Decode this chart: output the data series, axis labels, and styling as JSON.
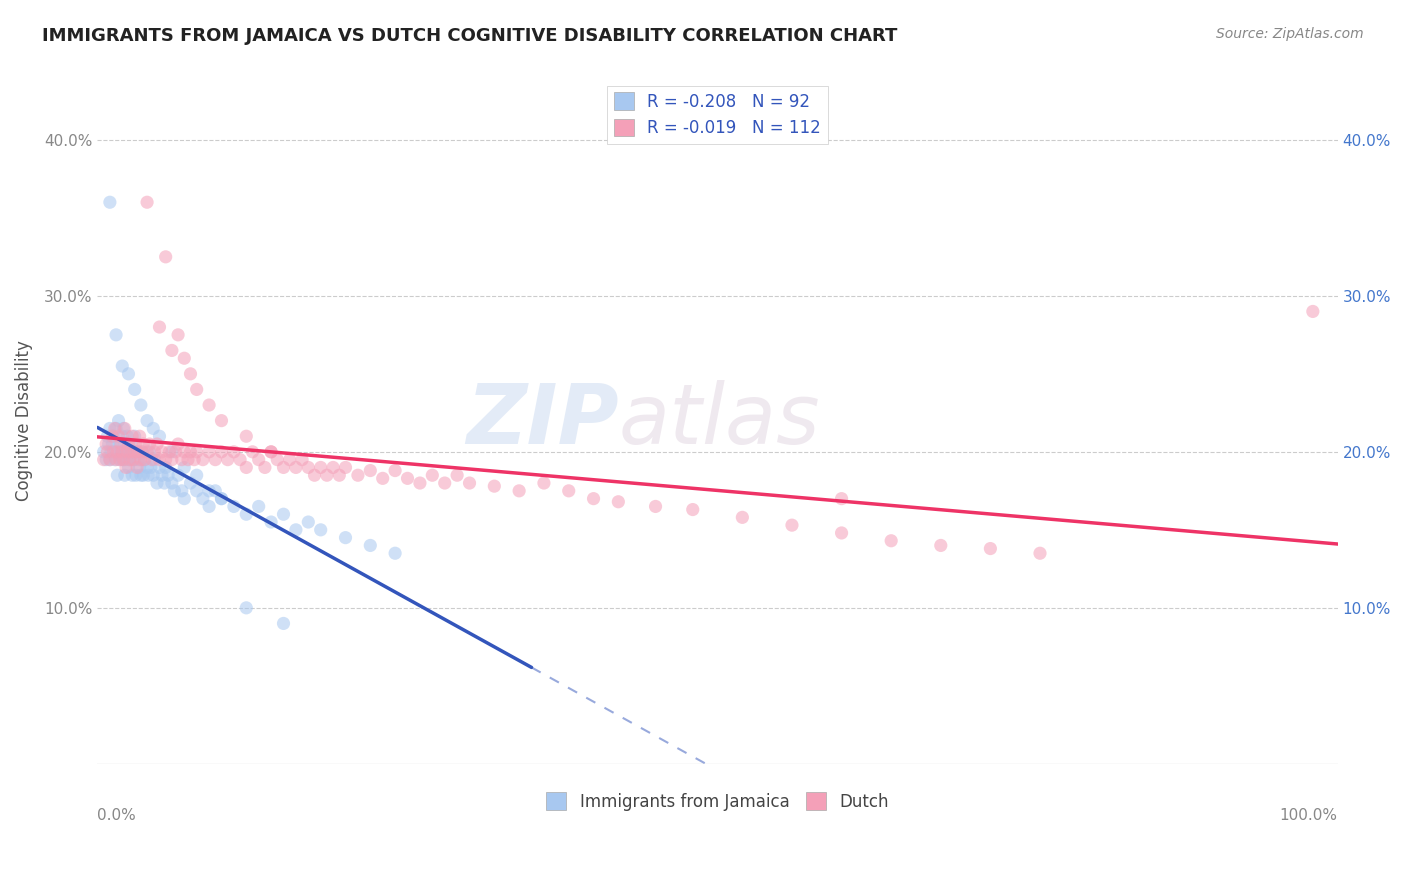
{
  "title": "IMMIGRANTS FROM JAMAICA VS DUTCH COGNITIVE DISABILITY CORRELATION CHART",
  "source": "Source: ZipAtlas.com",
  "ylabel": "Cognitive Disability",
  "legend_labels": [
    "Immigrants from Jamaica",
    "Dutch"
  ],
  "r_jamaica": -0.208,
  "n_jamaica": 92,
  "r_dutch": -0.019,
  "n_dutch": 112,
  "color_jamaica": "#A8C8F0",
  "color_dutch": "#F4A0B8",
  "color_jamaica_line": "#3355BB",
  "color_dutch_line": "#EE3366",
  "xlim": [
    0.0,
    1.0
  ],
  "ylim": [
    0.0,
    0.44
  ],
  "xticks": [
    0.0,
    1.0
  ],
  "yticks": [
    0.0,
    0.1,
    0.2,
    0.3,
    0.4
  ],
  "watermark_zip": "ZIP",
  "watermark_atlas": "atlas",
  "background_color": "#ffffff",
  "grid_color": "#cccccc",
  "title_color": "#222222",
  "legend_r_color": "#3355BB",
  "scatter_alpha": 0.55,
  "scatter_size": 90,
  "jamaica_points_x": [
    0.005,
    0.007,
    0.008,
    0.009,
    0.01,
    0.01,
    0.011,
    0.012,
    0.013,
    0.014,
    0.015,
    0.015,
    0.016,
    0.017,
    0.018,
    0.018,
    0.019,
    0.02,
    0.02,
    0.021,
    0.021,
    0.022,
    0.022,
    0.023,
    0.023,
    0.024,
    0.025,
    0.025,
    0.026,
    0.027,
    0.028,
    0.029,
    0.03,
    0.03,
    0.031,
    0.032,
    0.033,
    0.034,
    0.035,
    0.036,
    0.037,
    0.038,
    0.04,
    0.041,
    0.042,
    0.043,
    0.045,
    0.046,
    0.048,
    0.05,
    0.052,
    0.054,
    0.055,
    0.057,
    0.06,
    0.062,
    0.065,
    0.068,
    0.07,
    0.075,
    0.08,
    0.085,
    0.09,
    0.095,
    0.1,
    0.11,
    0.12,
    0.13,
    0.14,
    0.15,
    0.16,
    0.17,
    0.18,
    0.2,
    0.22,
    0.24,
    0.01,
    0.015,
    0.02,
    0.025,
    0.03,
    0.035,
    0.04,
    0.045,
    0.05,
    0.06,
    0.07,
    0.08,
    0.09,
    0.1,
    0.12,
    0.15
  ],
  "jamaica_points_y": [
    0.2,
    0.195,
    0.21,
    0.205,
    0.215,
    0.195,
    0.2,
    0.205,
    0.21,
    0.195,
    0.2,
    0.215,
    0.185,
    0.22,
    0.195,
    0.205,
    0.2,
    0.195,
    0.21,
    0.2,
    0.215,
    0.205,
    0.185,
    0.2,
    0.195,
    0.21,
    0.2,
    0.19,
    0.195,
    0.205,
    0.185,
    0.2,
    0.195,
    0.21,
    0.185,
    0.2,
    0.195,
    0.19,
    0.185,
    0.2,
    0.185,
    0.195,
    0.19,
    0.185,
    0.2,
    0.19,
    0.185,
    0.195,
    0.18,
    0.19,
    0.185,
    0.18,
    0.19,
    0.185,
    0.18,
    0.175,
    0.185,
    0.175,
    0.17,
    0.18,
    0.175,
    0.17,
    0.165,
    0.175,
    0.17,
    0.165,
    0.16,
    0.165,
    0.155,
    0.16,
    0.15,
    0.155,
    0.15,
    0.145,
    0.14,
    0.135,
    0.36,
    0.275,
    0.255,
    0.25,
    0.24,
    0.23,
    0.22,
    0.215,
    0.21,
    0.2,
    0.19,
    0.185,
    0.175,
    0.17,
    0.1,
    0.09
  ],
  "dutch_points_x": [
    0.005,
    0.007,
    0.008,
    0.01,
    0.012,
    0.013,
    0.014,
    0.015,
    0.016,
    0.017,
    0.018,
    0.019,
    0.02,
    0.021,
    0.022,
    0.023,
    0.024,
    0.025,
    0.026,
    0.027,
    0.028,
    0.029,
    0.03,
    0.031,
    0.032,
    0.033,
    0.034,
    0.035,
    0.036,
    0.037,
    0.038,
    0.04,
    0.042,
    0.044,
    0.046,
    0.048,
    0.05,
    0.052,
    0.055,
    0.058,
    0.06,
    0.063,
    0.065,
    0.068,
    0.07,
    0.073,
    0.075,
    0.078,
    0.08,
    0.085,
    0.09,
    0.095,
    0.1,
    0.105,
    0.11,
    0.115,
    0.12,
    0.125,
    0.13,
    0.135,
    0.14,
    0.145,
    0.15,
    0.155,
    0.16,
    0.165,
    0.17,
    0.175,
    0.18,
    0.185,
    0.19,
    0.195,
    0.2,
    0.21,
    0.22,
    0.23,
    0.24,
    0.25,
    0.26,
    0.27,
    0.28,
    0.29,
    0.3,
    0.32,
    0.34,
    0.36,
    0.38,
    0.4,
    0.42,
    0.45,
    0.48,
    0.52,
    0.56,
    0.6,
    0.64,
    0.68,
    0.72,
    0.76,
    0.6,
    0.98,
    0.04,
    0.05,
    0.055,
    0.06,
    0.065,
    0.07,
    0.075,
    0.08,
    0.09,
    0.1,
    0.12,
    0.14
  ],
  "dutch_points_y": [
    0.195,
    0.205,
    0.2,
    0.195,
    0.21,
    0.2,
    0.215,
    0.195,
    0.2,
    0.21,
    0.195,
    0.205,
    0.2,
    0.195,
    0.215,
    0.19,
    0.2,
    0.205,
    0.195,
    0.2,
    0.21,
    0.195,
    0.2,
    0.205,
    0.19,
    0.2,
    0.21,
    0.195,
    0.2,
    0.205,
    0.195,
    0.2,
    0.205,
    0.195,
    0.2,
    0.205,
    0.195,
    0.2,
    0.195,
    0.2,
    0.195,
    0.2,
    0.205,
    0.195,
    0.2,
    0.195,
    0.2,
    0.195,
    0.2,
    0.195,
    0.2,
    0.195,
    0.2,
    0.195,
    0.2,
    0.195,
    0.19,
    0.2,
    0.195,
    0.19,
    0.2,
    0.195,
    0.19,
    0.195,
    0.19,
    0.195,
    0.19,
    0.185,
    0.19,
    0.185,
    0.19,
    0.185,
    0.19,
    0.185,
    0.188,
    0.183,
    0.188,
    0.183,
    0.18,
    0.185,
    0.18,
    0.185,
    0.18,
    0.178,
    0.175,
    0.18,
    0.175,
    0.17,
    0.168,
    0.165,
    0.163,
    0.158,
    0.153,
    0.148,
    0.143,
    0.14,
    0.138,
    0.135,
    0.17,
    0.29,
    0.36,
    0.28,
    0.325,
    0.265,
    0.275,
    0.26,
    0.25,
    0.24,
    0.23,
    0.22,
    0.21,
    0.2
  ]
}
